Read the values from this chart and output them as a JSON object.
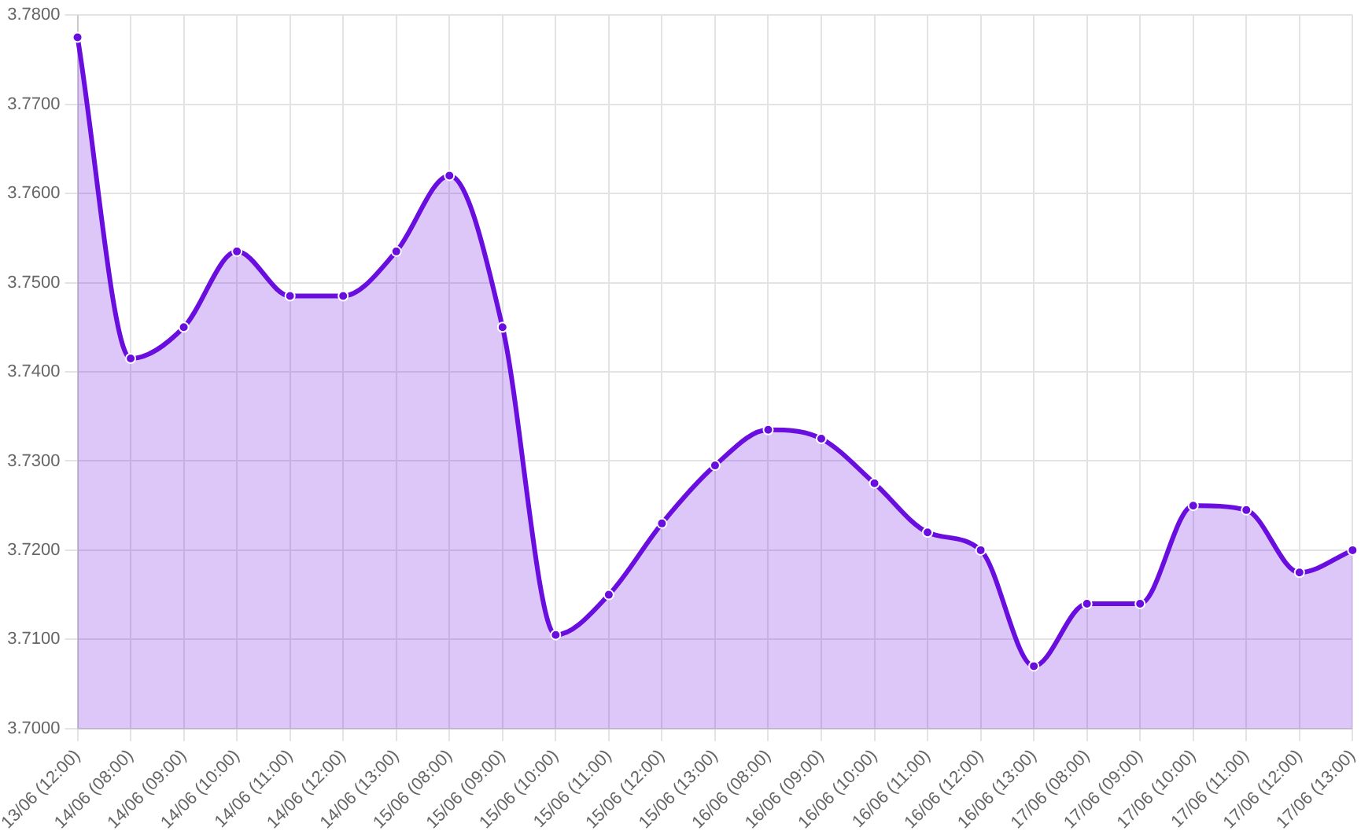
{
  "chart_data": {
    "type": "area",
    "categories": [
      "13/06 (12:00)",
      "14/06 (08:00)",
      "14/06 (09:00)",
      "14/06 (10:00)",
      "14/06 (11:00)",
      "14/06 (12:00)",
      "14/06 (13:00)",
      "15/06 (08:00)",
      "15/06 (09:00)",
      "15/06 (10:00)",
      "15/06 (11:00)",
      "15/06 (12:00)",
      "15/06 (13:00)",
      "16/06 (08:00)",
      "16/06 (09:00)",
      "16/06 (10:00)",
      "16/06 (11:00)",
      "16/06 (12:00)",
      "16/06 (13:00)",
      "17/06 (08:00)",
      "17/06 (09:00)",
      "17/06 (10:00)",
      "17/06 (11:00)",
      "17/06 (12:00)",
      "17/06 (13:00)"
    ],
    "series": [
      {
        "color": "#6a0ddf",
        "values": [
          3.7775,
          3.7415,
          3.745,
          3.7535,
          3.7485,
          3.7485,
          3.7535,
          3.762,
          3.745,
          3.7105,
          3.715,
          3.723,
          3.7295,
          3.7335,
          3.7325,
          3.7275,
          3.722,
          3.72,
          3.707,
          3.714,
          3.714,
          3.725,
          3.7245,
          3.7175,
          3.72
        ]
      }
    ],
    "ylim": [
      3.7,
      3.78
    ],
    "yticks": [
      {
        "value": 3.7,
        "label": "3.7000"
      },
      {
        "value": 3.71,
        "label": "3.7100"
      },
      {
        "value": 3.72,
        "label": "3.7200"
      },
      {
        "value": 3.73,
        "label": "3.7300"
      },
      {
        "value": 3.74,
        "label": "3.7400"
      },
      {
        "value": 3.75,
        "label": "3.7500"
      },
      {
        "value": 3.76,
        "label": "3.7600"
      },
      {
        "value": 3.77,
        "label": "3.7700"
      },
      {
        "value": 3.78,
        "label": "3.7800"
      }
    ],
    "grid": true,
    "legend": false,
    "marker": "circle",
    "line_style": "solid"
  }
}
